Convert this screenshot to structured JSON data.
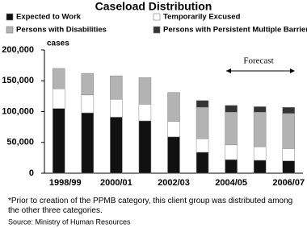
{
  "chart_data": {
    "type": "stacked-bar",
    "title": "Caseload Distribution",
    "y_label": "cases",
    "categories": [
      "1998/99",
      null,
      "2000/01",
      null,
      "2002/03",
      null,
      "2004/05",
      null,
      "2006/07"
    ],
    "series": [
      {
        "name": "Expected to Work",
        "color": "#111111",
        "values": [
          105000,
          98000,
          91000,
          85000,
          59000,
          34000,
          22000,
          21000,
          20000
        ]
      },
      {
        "name": "Temporarily Excused",
        "color": "#ffffff",
        "values": [
          32000,
          29000,
          29000,
          27000,
          25000,
          22000,
          24000,
          22000,
          20000
        ]
      },
      {
        "name": "Persons with Disabilities",
        "color": "#b3b3b3",
        "values": [
          33000,
          35000,
          38000,
          43000,
          47000,
          51000,
          53000,
          56000,
          57000
        ]
      },
      {
        "name": "Persons with Persistent Multiple Barriers*",
        "color": "#333333",
        "values": [
          null,
          null,
          null,
          null,
          null,
          11000,
          11000,
          9000,
          10000
        ]
      }
    ],
    "ylim": [
      0,
      200000
    ],
    "yticks": [
      0,
      {
        "value": 50000,
        "label": "50,000"
      },
      {
        "value": 100000,
        "label": "100,000"
      },
      {
        "value": 150000,
        "label": "150,000"
      },
      {
        "value": 200000,
        "label": "200,000"
      }
    ],
    "annotation": "Forecast",
    "footnote": "*Prior to creation of the PPMB category, this client group was distributed among the other three categories.",
    "source": "Source:  Ministry of Human Resources"
  }
}
